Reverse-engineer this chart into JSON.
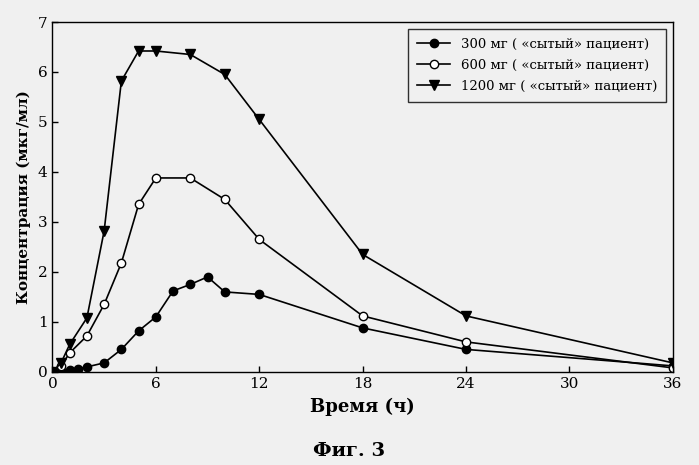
{
  "series": [
    {
      "label": "300 мг ( «сытый» пациент)",
      "x": [
        0,
        0.5,
        1,
        1.5,
        2,
        3,
        4,
        5,
        6,
        7,
        8,
        9,
        10,
        12,
        18,
        24,
        36
      ],
      "y": [
        0.0,
        0.02,
        0.04,
        0.06,
        0.1,
        0.18,
        0.45,
        0.82,
        1.1,
        1.62,
        1.75,
        1.9,
        1.6,
        1.55,
        0.88,
        0.45,
        0.12
      ],
      "marker": "o",
      "markerface": "black",
      "markersize": 6,
      "color": "black",
      "linestyle": "-"
    },
    {
      "label": "600 мг ( «сытый» пациент)",
      "x": [
        0,
        0.5,
        1,
        2,
        3,
        4,
        5,
        6,
        8,
        10,
        12,
        18,
        24,
        36
      ],
      "y": [
        0.0,
        0.12,
        0.38,
        0.72,
        1.35,
        2.18,
        3.35,
        3.88,
        3.88,
        3.45,
        2.65,
        1.12,
        0.6,
        0.08
      ],
      "marker": "o",
      "markerface": "white",
      "markersize": 6,
      "color": "black",
      "linestyle": "-"
    },
    {
      "label": "1200 мг ( «сытый» пациент)",
      "x": [
        0,
        0.5,
        1,
        2,
        3,
        4,
        5,
        6,
        8,
        10,
        12,
        18,
        24,
        36
      ],
      "y": [
        0.0,
        0.18,
        0.55,
        1.08,
        2.82,
        5.82,
        6.42,
        6.42,
        6.35,
        5.95,
        5.05,
        2.35,
        1.12,
        0.18
      ],
      "marker": "v",
      "markerface": "black",
      "markersize": 7,
      "color": "black",
      "linestyle": "-"
    }
  ],
  "xlabel": "Время (ч)",
  "ylabel": "Концентрация (мкг/мл)",
  "fig_title": "Фиг. 3",
  "xlim": [
    0,
    36
  ],
  "ylim": [
    0,
    7
  ],
  "xticks": [
    0,
    6,
    12,
    18,
    24,
    30,
    36
  ],
  "yticks": [
    0,
    1,
    2,
    3,
    4,
    5,
    6,
    7
  ],
  "background_color": "#f0f0f0",
  "legend_loc": "upper right"
}
